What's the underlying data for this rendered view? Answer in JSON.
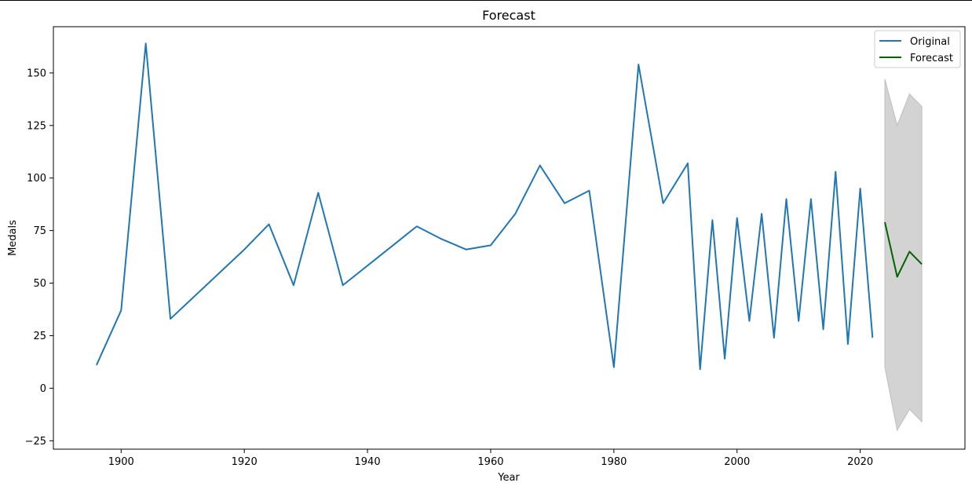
{
  "chart_data": {
    "type": "line",
    "title": "Forecast",
    "xlabel": "Year",
    "ylabel": "Medals",
    "xlim": [
      1889,
      2037
    ],
    "ylim": [
      -29,
      172
    ],
    "xticks": [
      1900,
      1920,
      1940,
      1960,
      1980,
      2000,
      2020
    ],
    "yticks": [
      -25,
      0,
      25,
      50,
      75,
      100,
      125,
      150
    ],
    "legend_position": "top-right",
    "grid": false,
    "series": [
      {
        "name": "Original",
        "color": "#1f77b4",
        "x": [
          1896,
          1900,
          1904,
          1908,
          1920,
          1924,
          1928,
          1932,
          1936,
          1948,
          1952,
          1956,
          1960,
          1964,
          1968,
          1972,
          1976,
          1980,
          1984,
          1988,
          1992,
          1994,
          1996,
          1998,
          2000,
          2002,
          2004,
          2006,
          2008,
          2010,
          2012,
          2014,
          2016,
          2018,
          2020,
          2022
        ],
        "values": [
          11,
          37,
          164,
          33,
          66,
          78,
          49,
          93,
          49,
          77,
          71,
          66,
          68,
          83,
          106,
          88,
          94,
          10,
          154,
          88,
          107,
          9,
          80,
          14,
          81,
          32,
          83,
          24,
          90,
          32,
          90,
          28,
          103,
          21,
          95,
          24
        ]
      },
      {
        "name": "Forecast",
        "color": "#006400",
        "x": [
          2024,
          2026,
          2028,
          2030
        ],
        "values": [
          79,
          53,
          65,
          59
        ]
      }
    ],
    "confidence_interval": {
      "color": "#d3d3d3",
      "x": [
        2024,
        2026,
        2028,
        2030
      ],
      "lower": [
        10,
        -20,
        -10,
        -16
      ],
      "upper": [
        147,
        125,
        140,
        134
      ]
    }
  }
}
